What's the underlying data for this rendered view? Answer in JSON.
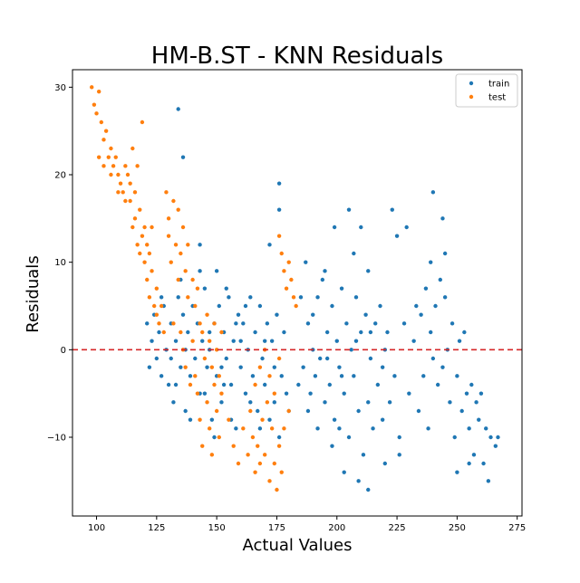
{
  "chart_data": {
    "type": "scatter",
    "title": "HM-B.ST - KNN Residuals",
    "xlabel": "Actual Values",
    "ylabel": "Residuals",
    "xlim": [
      90,
      277
    ],
    "ylim": [
      -19,
      32
    ],
    "xticks": [
      100,
      125,
      150,
      175,
      200,
      225,
      250,
      275
    ],
    "yticks": [
      -10,
      0,
      10,
      20,
      30
    ],
    "grid": false,
    "legend_position": "top-right",
    "reference_line": {
      "y": 0,
      "style": "dashed",
      "color": "#d62728"
    },
    "series": [
      {
        "name": "train",
        "color": "#1f77b4",
        "points": [
          [
            121,
            3
          ],
          [
            122,
            -2
          ],
          [
            123,
            1
          ],
          [
            124,
            4
          ],
          [
            125,
            -1
          ],
          [
            126,
            2
          ],
          [
            127,
            -3
          ],
          [
            128,
            5
          ],
          [
            129,
            0
          ],
          [
            130,
            -4
          ],
          [
            131,
            3
          ],
          [
            132,
            -6
          ],
          [
            133,
            1
          ],
          [
            134,
            6
          ],
          [
            135,
            -2
          ],
          [
            136,
            4
          ],
          [
            137,
            -7
          ],
          [
            138,
            2
          ],
          [
            139,
            -3
          ],
          [
            140,
            5
          ],
          [
            141,
            -1
          ],
          [
            142,
            3
          ],
          [
            143,
            -5
          ],
          [
            144,
            1
          ],
          [
            145,
            7
          ],
          [
            146,
            -2
          ],
          [
            147,
            0
          ],
          [
            148,
            -8
          ],
          [
            149,
            3
          ],
          [
            150,
            -3
          ],
          [
            151,
            5
          ],
          [
            152,
            -6
          ],
          [
            153,
            2
          ],
          [
            154,
            -1
          ],
          [
            155,
            6
          ],
          [
            156,
            -4
          ],
          [
            157,
            1
          ],
          [
            158,
            -9
          ],
          [
            159,
            4
          ],
          [
            160,
            -2
          ],
          [
            161,
            3
          ],
          [
            162,
            -5
          ],
          [
            163,
            0
          ],
          [
            164,
            6
          ],
          [
            165,
            -3
          ],
          [
            166,
            2
          ],
          [
            167,
            -7
          ],
          [
            168,
            5
          ],
          [
            169,
            -1
          ],
          [
            170,
            -4
          ],
          [
            171,
            3
          ],
          [
            172,
            -8
          ],
          [
            173,
            1
          ],
          [
            174,
            -6
          ],
          [
            175,
            4
          ],
          [
            176,
            -10
          ],
          [
            177,
            -3
          ],
          [
            178,
            2
          ],
          [
            179,
            -5
          ],
          [
            180,
            -7
          ],
          [
            133,
            -4
          ],
          [
            139,
            -8
          ],
          [
            145,
            -5
          ],
          [
            152,
            -2
          ],
          [
            158,
            3
          ],
          [
            164,
            -6
          ],
          [
            170,
            1
          ],
          [
            127,
            6
          ],
          [
            135,
            8
          ],
          [
            143,
            9
          ],
          [
            149,
            -10
          ],
          [
            156,
            -8
          ],
          [
            162,
            5
          ],
          [
            168,
            -9
          ],
          [
            174,
            -2
          ],
          [
            131,
            -1
          ],
          [
            137,
            0
          ],
          [
            147,
            2
          ],
          [
            153,
            -4
          ],
          [
            160,
            1
          ],
          [
            134,
            27.5
          ],
          [
            136,
            22
          ],
          [
            176,
            19
          ],
          [
            176,
            16
          ],
          [
            143,
            12
          ],
          [
            172,
            12
          ],
          [
            150,
            9
          ],
          [
            154,
            7
          ],
          [
            186,
            -2
          ],
          [
            188,
            3
          ],
          [
            189,
            -5
          ],
          [
            190,
            4
          ],
          [
            191,
            -3
          ],
          [
            192,
            6
          ],
          [
            193,
            -1
          ],
          [
            194,
            8
          ],
          [
            195,
            -6
          ],
          [
            196,
            2
          ],
          [
            197,
            -4
          ],
          [
            198,
            5
          ],
          [
            199,
            -8
          ],
          [
            200,
            1
          ],
          [
            201,
            -2
          ],
          [
            202,
            7
          ],
          [
            203,
            -5
          ],
          [
            204,
            3
          ],
          [
            205,
            -10
          ],
          [
            206,
            0
          ],
          [
            207,
            -3
          ],
          [
            208,
            6
          ],
          [
            209,
            -7
          ],
          [
            210,
            2
          ],
          [
            211,
            -12
          ],
          [
            212,
            4
          ],
          [
            213,
            -6
          ],
          [
            214,
            -1
          ],
          [
            215,
            -9
          ],
          [
            216,
            3
          ],
          [
            187,
            10
          ],
          [
            192,
            -9
          ],
          [
            198,
            -11
          ],
          [
            203,
            -14
          ],
          [
            209,
            -15
          ],
          [
            213,
            -16
          ],
          [
            199,
            14
          ],
          [
            205,
            16
          ],
          [
            210,
            14
          ],
          [
            217,
            -4
          ],
          [
            218,
            5
          ],
          [
            219,
            -8
          ],
          [
            220,
            -13
          ],
          [
            221,
            2
          ],
          [
            222,
            -6
          ],
          [
            223,
            16
          ],
          [
            224,
            -3
          ],
          [
            225,
            13
          ],
          [
            226,
            -10
          ],
          [
            228,
            3
          ],
          [
            230,
            -5
          ],
          [
            232,
            1
          ],
          [
            234,
            -7
          ],
          [
            235,
            4
          ],
          [
            236,
            -3
          ],
          [
            237,
            7
          ],
          [
            238,
            -9
          ],
          [
            239,
            2
          ],
          [
            240,
            -1
          ],
          [
            241,
            5
          ],
          [
            242,
            -4
          ],
          [
            243,
            8
          ],
          [
            244,
            -2
          ],
          [
            245,
            6
          ],
          [
            246,
            0
          ],
          [
            247,
            -6
          ],
          [
            248,
            3
          ],
          [
            249,
            -10
          ],
          [
            250,
            -3
          ],
          [
            251,
            1
          ],
          [
            252,
            -7
          ],
          [
            253,
            2
          ],
          [
            254,
            -5
          ],
          [
            255,
            -9
          ],
          [
            256,
            -4
          ],
          [
            257,
            -12
          ],
          [
            258,
            -6
          ],
          [
            259,
            -8
          ],
          [
            260,
            -5
          ],
          [
            261,
            -13
          ],
          [
            262,
            -9
          ],
          [
            263,
            -15
          ],
          [
            264,
            -10
          ],
          [
            266,
            -11
          ],
          [
            267,
            -10
          ],
          [
            240,
            18
          ],
          [
            244,
            15
          ],
          [
            229,
            14
          ],
          [
            185,
            6
          ],
          [
            188,
            -7
          ],
          [
            195,
            9
          ],
          [
            201,
            -9
          ],
          [
            207,
            11
          ],
          [
            213,
            9
          ],
          [
            219,
            -2
          ],
          [
            226,
            -12
          ],
          [
            233,
            5
          ],
          [
            239,
            10
          ],
          [
            245,
            11
          ],
          [
            250,
            -14
          ],
          [
            255,
            -13
          ],
          [
            184,
            -4
          ],
          [
            190,
            0
          ],
          [
            196,
            -1
          ],
          [
            202,
            -3
          ],
          [
            208,
            1
          ],
          [
            214,
            2
          ],
          [
            220,
            0
          ]
        ]
      },
      {
        "name": "test",
        "color": "#ff7f0e",
        "points": [
          [
            98,
            30
          ],
          [
            99,
            28
          ],
          [
            100,
            27
          ],
          [
            101,
            29.5
          ],
          [
            101,
            22
          ],
          [
            102,
            26
          ],
          [
            103,
            24
          ],
          [
            103,
            21
          ],
          [
            104,
            25
          ],
          [
            105,
            22
          ],
          [
            106,
            23
          ],
          [
            106,
            20
          ],
          [
            107,
            21
          ],
          [
            108,
            22
          ],
          [
            109,
            18
          ],
          [
            109,
            20
          ],
          [
            110,
            19
          ],
          [
            111,
            18
          ],
          [
            112,
            21
          ],
          [
            112,
            17
          ],
          [
            113,
            20
          ],
          [
            114,
            17
          ],
          [
            114,
            19
          ],
          [
            115,
            23
          ],
          [
            115,
            14
          ],
          [
            116,
            15
          ],
          [
            116,
            18
          ],
          [
            117,
            21
          ],
          [
            117,
            12
          ],
          [
            118,
            16
          ],
          [
            118,
            11
          ],
          [
            119,
            13
          ],
          [
            119,
            26
          ],
          [
            120,
            10
          ],
          [
            120,
            14
          ],
          [
            121,
            12
          ],
          [
            121,
            8
          ],
          [
            122,
            11
          ],
          [
            122,
            6
          ],
          [
            123,
            9
          ],
          [
            123,
            14
          ],
          [
            124,
            5
          ],
          [
            125,
            7
          ],
          [
            125,
            4
          ],
          [
            126,
            3
          ],
          [
            127,
            5
          ],
          [
            128,
            2
          ],
          [
            129,
            18
          ],
          [
            130,
            13
          ],
          [
            130,
            15
          ],
          [
            131,
            10
          ],
          [
            132,
            17
          ],
          [
            132,
            3
          ],
          [
            133,
            12
          ],
          [
            134,
            16
          ],
          [
            134,
            8
          ],
          [
            135,
            11
          ],
          [
            135,
            2
          ],
          [
            136,
            14
          ],
          [
            136,
            0
          ],
          [
            137,
            9
          ],
          [
            137,
            -2
          ],
          [
            138,
            12
          ],
          [
            138,
            6
          ],
          [
            139,
            -4
          ],
          [
            140,
            8
          ],
          [
            140,
            1
          ],
          [
            141,
            5
          ],
          [
            141,
            -3
          ],
          [
            142,
            7
          ],
          [
            142,
            -5
          ],
          [
            143,
            3
          ],
          [
            143,
            -8
          ],
          [
            144,
            2
          ],
          [
            144,
            -11
          ],
          [
            145,
            -1
          ],
          [
            146,
            4
          ],
          [
            146,
            -6
          ],
          [
            147,
            1
          ],
          [
            147,
            -9
          ],
          [
            148,
            -2
          ],
          [
            148,
            -12
          ],
          [
            149,
            3
          ],
          [
            149,
            -4
          ],
          [
            150,
            0
          ],
          [
            150,
            -7
          ],
          [
            151,
            -3
          ],
          [
            151,
            -10
          ],
          [
            152,
            2
          ],
          [
            152,
            -5
          ],
          [
            155,
            -8
          ],
          [
            157,
            -11
          ],
          [
            159,
            -13
          ],
          [
            161,
            -9
          ],
          [
            163,
            -12
          ],
          [
            165,
            -10
          ],
          [
            166,
            -14
          ],
          [
            167,
            -11
          ],
          [
            168,
            -13
          ],
          [
            169,
            -8
          ],
          [
            170,
            -12
          ],
          [
            171,
            -6
          ],
          [
            172,
            -15
          ],
          [
            173,
            -9
          ],
          [
            174,
            -13
          ],
          [
            175,
            -16
          ],
          [
            176,
            -11
          ],
          [
            177,
            -14
          ],
          [
            164,
            -7
          ],
          [
            166,
            -4
          ],
          [
            168,
            -2
          ],
          [
            170,
            0
          ],
          [
            172,
            -3
          ],
          [
            174,
            -5
          ],
          [
            176,
            -1
          ],
          [
            178,
            -9
          ],
          [
            180,
            -7
          ],
          [
            176,
            13
          ],
          [
            177,
            11
          ],
          [
            178,
            9
          ],
          [
            179,
            7
          ],
          [
            180,
            10
          ],
          [
            181,
            8
          ],
          [
            182,
            6
          ],
          [
            183,
            5
          ]
        ]
      }
    ]
  }
}
